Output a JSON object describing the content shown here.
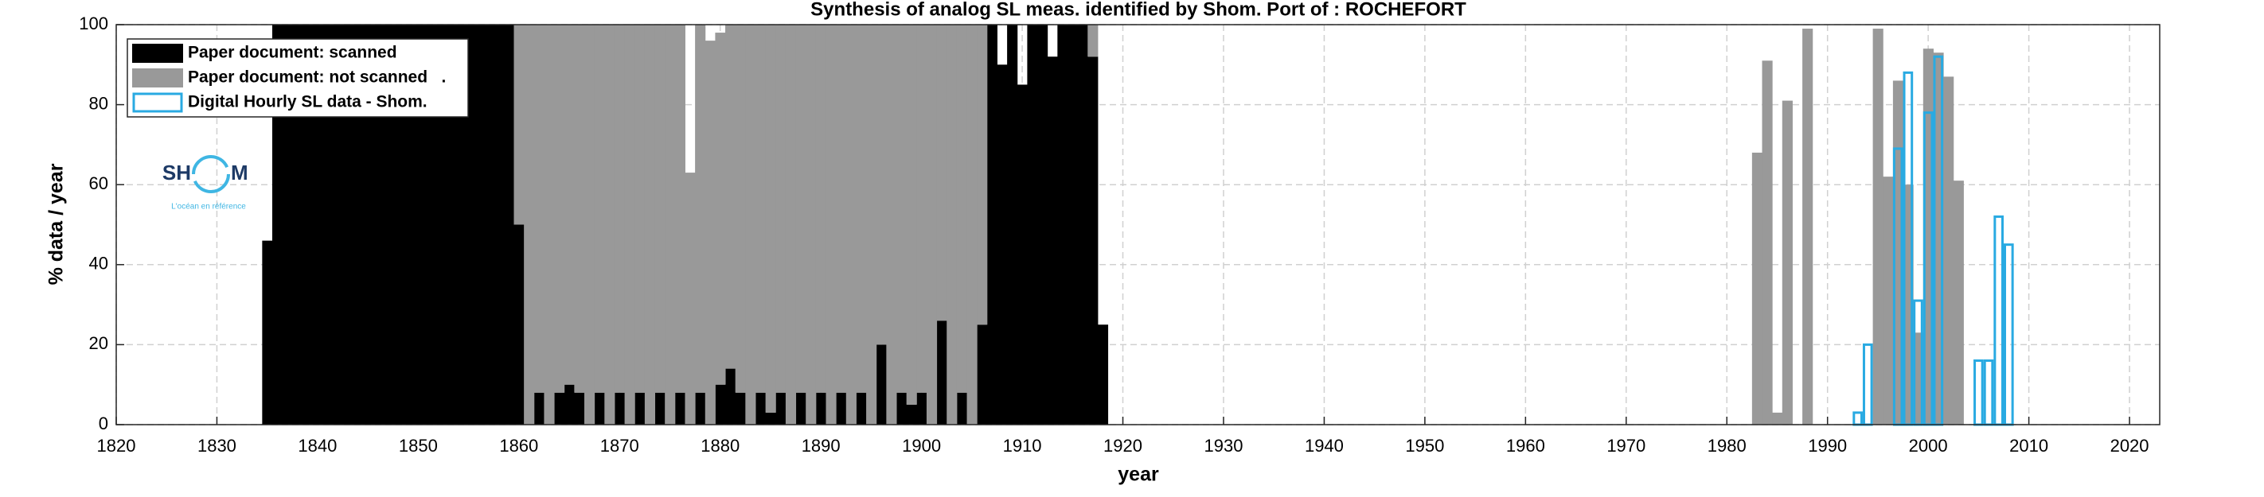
{
  "chart_data": {
    "type": "bar",
    "title": "Synthesis of analog SL meas. identified by Shom. Port of : ROCHEFORT",
    "x_label": "year",
    "y_label": "% data / year",
    "xlim": [
      1820,
      2023
    ],
    "ylim": [
      0,
      100
    ],
    "xticks": [
      1820,
      1830,
      1840,
      1850,
      1860,
      1870,
      1880,
      1890,
      1900,
      1910,
      1920,
      1930,
      1940,
      1950,
      1960,
      1970,
      1980,
      1990,
      2000,
      2010,
      2020
    ],
    "yticks": [
      0,
      20,
      40,
      60,
      80,
      100
    ],
    "grid": true,
    "legend": "upper left",
    "logo": {
      "left": "SH",
      "right": "M",
      "tagline": "L'océan en référence"
    },
    "series": [
      {
        "name": "Paper document: scanned",
        "color": "#000000",
        "style": "filled",
        "stack": "paper",
        "x": [
          1835,
          1836,
          1837,
          1838,
          1839,
          1840,
          1841,
          1842,
          1843,
          1844,
          1845,
          1846,
          1847,
          1848,
          1849,
          1850,
          1851,
          1852,
          1853,
          1854,
          1855,
          1856,
          1857,
          1858,
          1859,
          1860,
          1861,
          1862,
          1863,
          1864,
          1865,
          1866,
          1867,
          1868,
          1869,
          1870,
          1871,
          1872,
          1873,
          1874,
          1875,
          1876,
          1877,
          1878,
          1879,
          1880,
          1881,
          1882,
          1883,
          1884,
          1885,
          1886,
          1887,
          1888,
          1889,
          1890,
          1891,
          1892,
          1893,
          1894,
          1895,
          1896,
          1897,
          1898,
          1899,
          1900,
          1901,
          1902,
          1903,
          1904,
          1905,
          1906,
          1907,
          1908,
          1909,
          1910,
          1911,
          1912,
          1913,
          1914,
          1915,
          1916,
          1917,
          1918
        ],
        "values": [
          46,
          100,
          100,
          100,
          100,
          100,
          100,
          100,
          100,
          100,
          100,
          100,
          100,
          100,
          100,
          100,
          100,
          100,
          100,
          100,
          100,
          100,
          100,
          100,
          100,
          50,
          0,
          8,
          0,
          8,
          10,
          8,
          0,
          8,
          0,
          8,
          0,
          8,
          0,
          8,
          0,
          8,
          0,
          8,
          0,
          10,
          14,
          8,
          0,
          8,
          3,
          8,
          0,
          8,
          0,
          8,
          0,
          8,
          0,
          8,
          0,
          20,
          0,
          8,
          5,
          8,
          0,
          26,
          0,
          8,
          0,
          25,
          100,
          90,
          100,
          85,
          100,
          100,
          92,
          100,
          100,
          100,
          92,
          25
        ]
      },
      {
        "name": "Paper document: not scanned   .",
        "color": "#999999",
        "style": "filled",
        "stack": "paper",
        "x": [
          1860,
          1861,
          1862,
          1863,
          1864,
          1865,
          1866,
          1867,
          1868,
          1869,
          1870,
          1871,
          1872,
          1873,
          1874,
          1875,
          1876,
          1877,
          1878,
          1879,
          1880,
          1881,
          1882,
          1883,
          1884,
          1885,
          1886,
          1887,
          1888,
          1889,
          1890,
          1891,
          1892,
          1893,
          1894,
          1895,
          1896,
          1897,
          1898,
          1899,
          1900,
          1901,
          1902,
          1903,
          1904,
          1905,
          1906,
          1917,
          1983,
          1984,
          1985,
          1986,
          1988,
          1995,
          1996,
          1997,
          1998,
          1999,
          2000,
          2001,
          2002,
          2003
        ],
        "values": [
          50,
          100,
          92,
          100,
          92,
          90,
          92,
          100,
          92,
          100,
          92,
          100,
          92,
          100,
          92,
          100,
          92,
          63,
          92,
          96,
          88,
          86,
          92,
          100,
          92,
          97,
          92,
          100,
          92,
          100,
          92,
          100,
          92,
          100,
          92,
          100,
          80,
          100,
          92,
          95,
          92,
          100,
          74,
          100,
          92,
          100,
          75,
          8,
          68,
          91,
          3,
          81,
          99,
          99,
          62,
          86,
          60,
          23,
          94,
          93,
          87,
          61
        ]
      },
      {
        "name": "Digital Hourly SL data - Shom.",
        "color": "#29aae2",
        "style": "outline",
        "x": [
          1993,
          1994,
          1997,
          1998,
          1999,
          2000,
          2001,
          2005,
          2006,
          2007,
          2008
        ],
        "values": [
          3,
          20,
          69,
          88,
          31,
          78,
          92,
          16,
          16,
          52,
          45
        ]
      }
    ]
  }
}
